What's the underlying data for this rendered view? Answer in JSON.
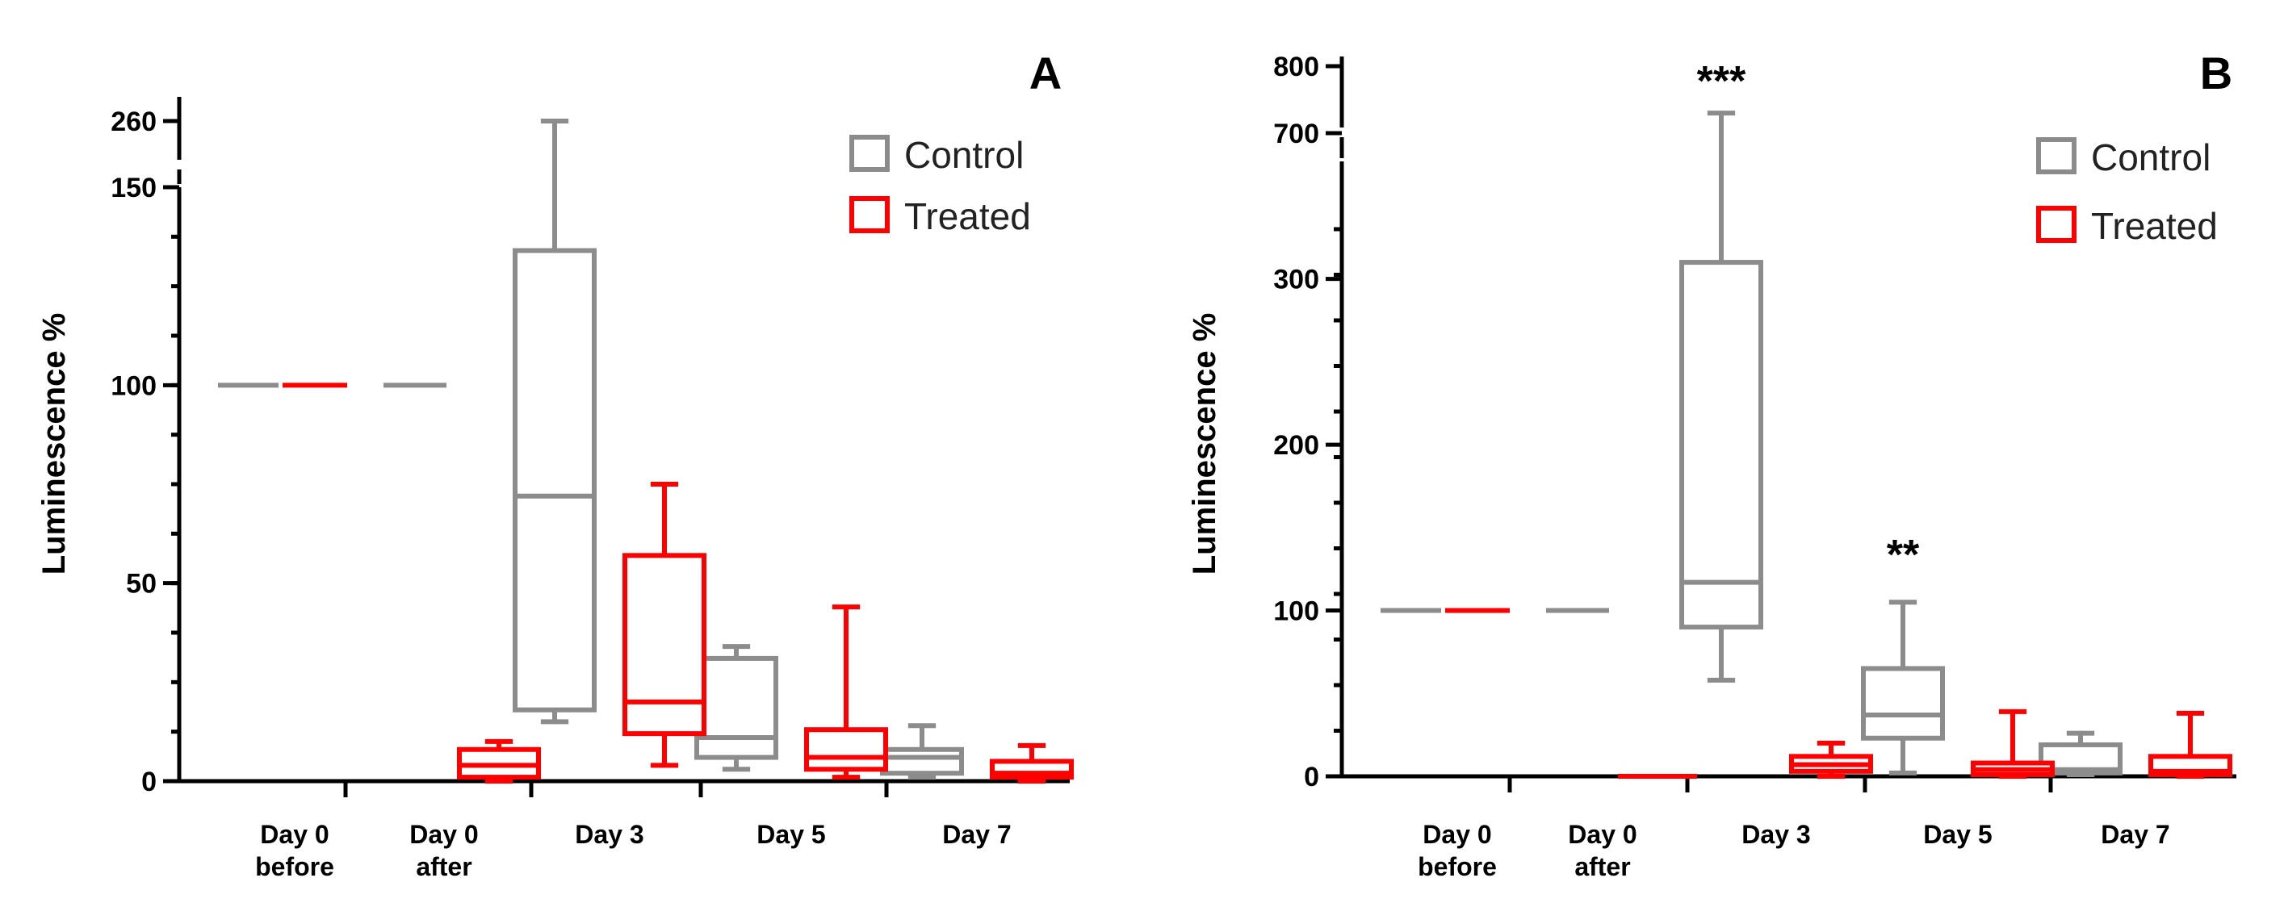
{
  "colors": {
    "control": "#8c8c8c",
    "treated": "#ff0000",
    "axis": "#000000"
  },
  "chart_data": [
    {
      "type": "box",
      "panel_label": "A",
      "ylabel": "Luminescence %",
      "ylim_lower": [
        0,
        150
      ],
      "ylim_upper": [
        260,
        260
      ],
      "yticks": [
        {
          "value": 0,
          "label": "0"
        },
        {
          "value": 50,
          "label": "50"
        },
        {
          "value": 100,
          "label": "100"
        },
        {
          "value": 150,
          "label": "150"
        },
        {
          "value": 260,
          "label": "260"
        }
      ],
      "categories": [
        {
          "lines": [
            "Day 0",
            "before"
          ]
        },
        {
          "lines": [
            "Day 0",
            "after"
          ]
        },
        {
          "lines": [
            "Day 3"
          ]
        },
        {
          "lines": [
            "Day 5"
          ]
        },
        {
          "lines": [
            "Day 7"
          ]
        }
      ],
      "legend": [
        {
          "name": "Control",
          "color": "#8c8c8c"
        },
        {
          "name": "Treated",
          "color": "#ff0000"
        }
      ],
      "series": [
        {
          "name": "Control",
          "color": "#8c8c8c",
          "boxes": [
            {
              "category": 0,
              "min": 100,
              "q1": 100,
              "median": 100,
              "q3": 100,
              "max": 100
            },
            {
              "category": 1,
              "min": 100,
              "q1": 100,
              "median": 100,
              "q3": 100,
              "max": 100
            },
            {
              "category": 2,
              "min": 15,
              "q1": 18,
              "median": 72,
              "q3": 134,
              "max": 260
            },
            {
              "category": 3,
              "min": 3,
              "q1": 6,
              "median": 11,
              "q3": 31,
              "max": 34
            },
            {
              "category": 4,
              "min": 1,
              "q1": 2,
              "median": 6,
              "q3": 8,
              "max": 14
            }
          ]
        },
        {
          "name": "Treated",
          "color": "#ff0000",
          "boxes": [
            {
              "category": 0,
              "min": 100,
              "q1": 100,
              "median": 100,
              "q3": 100,
              "max": 100
            },
            {
              "category": 1,
              "min": 0,
              "q1": 1,
              "median": 4,
              "q3": 8,
              "max": 10
            },
            {
              "category": 2,
              "min": 4,
              "q1": 12,
              "median": 20,
              "q3": 57,
              "max": 75
            },
            {
              "category": 3,
              "min": 1,
              "q1": 3,
              "median": 6,
              "q3": 13,
              "max": 44
            },
            {
              "category": 4,
              "min": 0,
              "q1": 1,
              "median": 2,
              "q3": 5,
              "max": 9
            }
          ]
        }
      ],
      "annotations": []
    },
    {
      "type": "box",
      "panel_label": "B",
      "ylabel": "Luminescence %",
      "ylim_lower": [
        0,
        330
      ],
      "ylim_upper": [
        700,
        800
      ],
      "yticks": [
        {
          "value": 0,
          "label": "0"
        },
        {
          "value": 100,
          "label": "100"
        },
        {
          "value": 200,
          "label": "200"
        },
        {
          "value": 300,
          "label": "300"
        },
        {
          "value": 700,
          "label": "700"
        },
        {
          "value": 800,
          "label": "800"
        }
      ],
      "categories": [
        {
          "lines": [
            "Day 0",
            "before"
          ]
        },
        {
          "lines": [
            "Day 0",
            "after"
          ]
        },
        {
          "lines": [
            "Day 3"
          ]
        },
        {
          "lines": [
            "Day 5"
          ]
        },
        {
          "lines": [
            "Day 7"
          ]
        }
      ],
      "legend": [
        {
          "name": "Control",
          "color": "#8c8c8c"
        },
        {
          "name": "Treated",
          "color": "#ff0000"
        }
      ],
      "series": [
        {
          "name": "Control",
          "color": "#8c8c8c",
          "boxes": [
            {
              "category": 0,
              "min": 100,
              "q1": 100,
              "median": 100,
              "q3": 100,
              "max": 100
            },
            {
              "category": 1,
              "min": 100,
              "q1": 100,
              "median": 100,
              "q3": 100,
              "max": 100
            },
            {
              "category": 2,
              "min": 58,
              "q1": 90,
              "median": 117,
              "q3": 310,
              "max": 730
            },
            {
              "category": 3,
              "min": 2,
              "q1": 23,
              "median": 37,
              "q3": 65,
              "max": 105
            },
            {
              "category": 4,
              "min": 1,
              "q1": 2,
              "median": 4,
              "q3": 19,
              "max": 26
            }
          ]
        },
        {
          "name": "Treated",
          "color": "#ff0000",
          "boxes": [
            {
              "category": 0,
              "min": 100,
              "q1": 100,
              "median": 100,
              "q3": 100,
              "max": 100
            },
            {
              "category": 1,
              "min": 0,
              "q1": 0,
              "median": 0,
              "q3": 0,
              "max": 0
            },
            {
              "category": 2,
              "min": 0,
              "q1": 3,
              "median": 7,
              "q3": 12,
              "max": 20
            },
            {
              "category": 3,
              "min": 0,
              "q1": 1,
              "median": 4,
              "q3": 8,
              "max": 39
            },
            {
              "category": 4,
              "min": 0,
              "q1": 1,
              "median": 3,
              "q3": 12,
              "max": 38
            }
          ]
        }
      ],
      "annotations": [
        {
          "category": 2,
          "text": "***"
        },
        {
          "category": 3,
          "text": "**"
        }
      ]
    }
  ]
}
